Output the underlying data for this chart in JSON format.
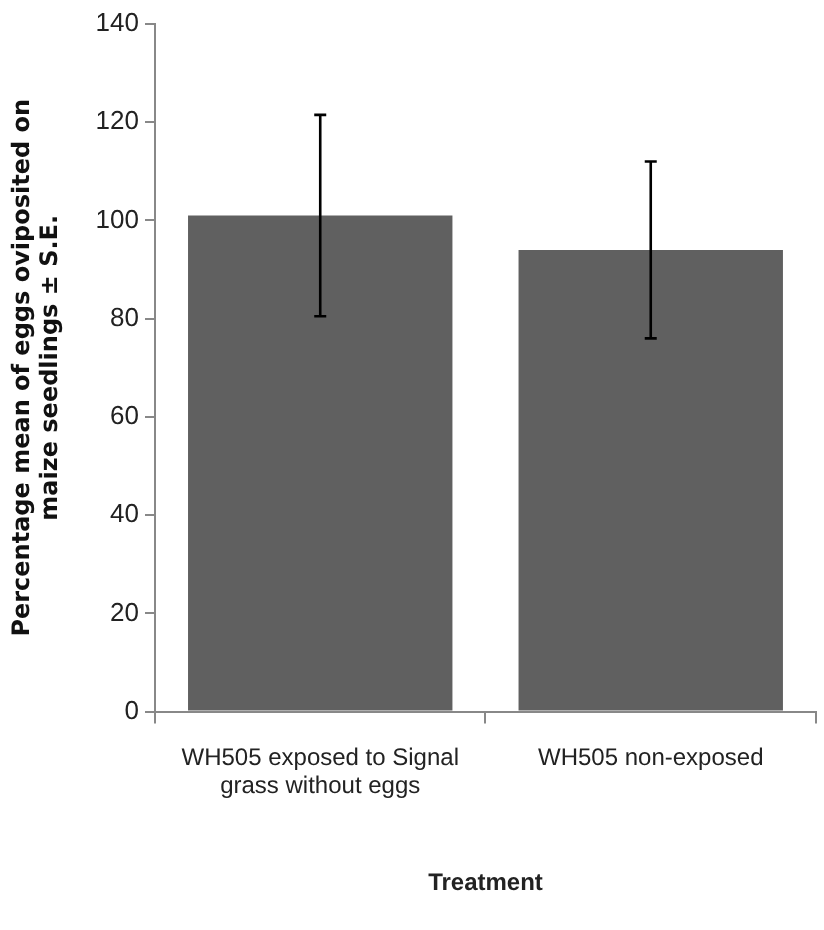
{
  "chart_data": {
    "type": "bar",
    "xlabel": "Treatment",
    "ylabel": "Percentage mean of eggs oviposited on maize seedlings ± S.E.",
    "categories": [
      "WH505 exposed to Signal grass without eggs",
      "WH505 non-exposed"
    ],
    "values": [
      101,
      94
    ],
    "errors": [
      20.5,
      18
    ],
    "color": "#606060",
    "ylim": [
      0,
      140
    ],
    "yticks": [
      0,
      20,
      40,
      60,
      80,
      100,
      120,
      140
    ],
    "grid": false,
    "legend": false
  }
}
